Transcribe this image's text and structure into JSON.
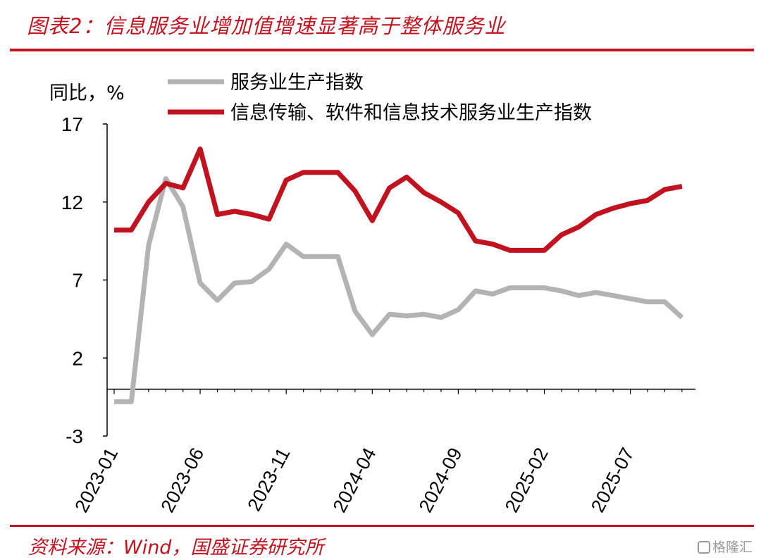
{
  "title": "图表2：信息服务业增加值增速显著高于整体服务业",
  "source": "资料来源：Wind，国盛证券研究所",
  "watermark": "格隆汇",
  "colors": {
    "accent": "#c0121f",
    "series_gray": "#b3b3b3",
    "series_red": "#c0121f"
  },
  "chart_data": {
    "type": "line",
    "ylabel": "同比，%",
    "ylim": [
      -3,
      17
    ],
    "yticks": [
      -3,
      2,
      7,
      12,
      17
    ],
    "x": [
      "2023-01",
      "2023-02",
      "2023-03",
      "2023-04",
      "2023-05",
      "2023-06",
      "2023-07",
      "2023-08",
      "2023-09",
      "2023-10",
      "2023-11",
      "2023-12",
      "2024-01",
      "2024-02",
      "2024-03",
      "2024-04",
      "2024-05",
      "2024-06",
      "2024-07",
      "2024-08",
      "2024-09",
      "2024-10",
      "2024-11",
      "2024-12",
      "2025-01",
      "2025-02",
      "2025-03",
      "2025-04",
      "2025-05",
      "2025-06",
      "2025-07",
      "2025-08",
      "2025-09",
      "2025-10"
    ],
    "xticks": [
      "2023-01",
      "2023-06",
      "2023-11",
      "2024-04",
      "2024-09",
      "2025-02",
      "2025-07"
    ],
    "legend_position": "top",
    "series": [
      {
        "name": "服务业生产指数",
        "color": "#b3b3b3",
        "values": [
          -0.8,
          -0.8,
          9.2,
          13.5,
          11.7,
          6.8,
          5.7,
          6.8,
          6.9,
          7.7,
          9.3,
          8.5,
          8.5,
          8.5,
          5.0,
          3.5,
          4.8,
          4.7,
          4.8,
          4.6,
          5.1,
          6.3,
          6.1,
          6.5,
          6.5,
          6.5,
          6.3,
          6.0,
          6.2,
          6.0,
          5.8,
          5.6,
          5.6,
          4.6
        ]
      },
      {
        "name": "信息传输、软件和信息技术服务业生产指数",
        "color": "#c0121f",
        "values": [
          10.2,
          10.2,
          12.0,
          13.2,
          12.9,
          15.4,
          11.2,
          11.4,
          11.2,
          10.9,
          13.4,
          13.9,
          13.9,
          13.9,
          12.7,
          10.8,
          12.9,
          13.6,
          12.6,
          12.0,
          11.3,
          9.5,
          9.3,
          8.9,
          8.9,
          8.9,
          9.9,
          10.4,
          11.2,
          11.6,
          11.9,
          12.1,
          12.8,
          13.0
        ]
      }
    ]
  }
}
